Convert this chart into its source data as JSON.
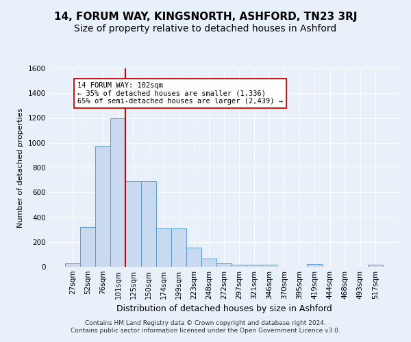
{
  "title": "14, FORUM WAY, KINGSNORTH, ASHFORD, TN23 3RJ",
  "subtitle": "Size of property relative to detached houses in Ashford",
  "xlabel": "Distribution of detached houses by size in Ashford",
  "ylabel": "Number of detached properties",
  "categories": [
    "27sqm",
    "52sqm",
    "76sqm",
    "101sqm",
    "125sqm",
    "150sqm",
    "174sqm",
    "199sqm",
    "223sqm",
    "248sqm",
    "272sqm",
    "297sqm",
    "321sqm",
    "346sqm",
    "370sqm",
    "395sqm",
    "419sqm",
    "444sqm",
    "468sqm",
    "493sqm",
    "517sqm"
  ],
  "values": [
    30,
    320,
    970,
    1200,
    690,
    690,
    310,
    310,
    155,
    65,
    25,
    18,
    15,
    15,
    0,
    0,
    20,
    0,
    0,
    0,
    15
  ],
  "bar_color": "#c9d9f0",
  "bar_edge_color": "#5b9bd5",
  "vline_x": 3.5,
  "vline_color": "#cc0000",
  "annotation_text": "14 FORUM WAY: 102sqm\n← 35% of detached houses are smaller (1,336)\n65% of semi-detached houses are larger (2,439) →",
  "annotation_box_color": "#ffffff",
  "annotation_box_edge_color": "#cc0000",
  "ylim": [
    0,
    1600
  ],
  "yticks": [
    0,
    200,
    400,
    600,
    800,
    1000,
    1200,
    1400,
    1600
  ],
  "background_color": "#e8f0fa",
  "plot_bg_color": "#e8f0fa",
  "footer": "Contains HM Land Registry data © Crown copyright and database right 2024.\nContains public sector information licensed under the Open Government Licence v3.0.",
  "title_fontsize": 11,
  "subtitle_fontsize": 10,
  "xlabel_fontsize": 9,
  "ylabel_fontsize": 8,
  "tick_fontsize": 7.5,
  "grid_color": "#ffffff",
  "footer_fontsize": 6.5
}
